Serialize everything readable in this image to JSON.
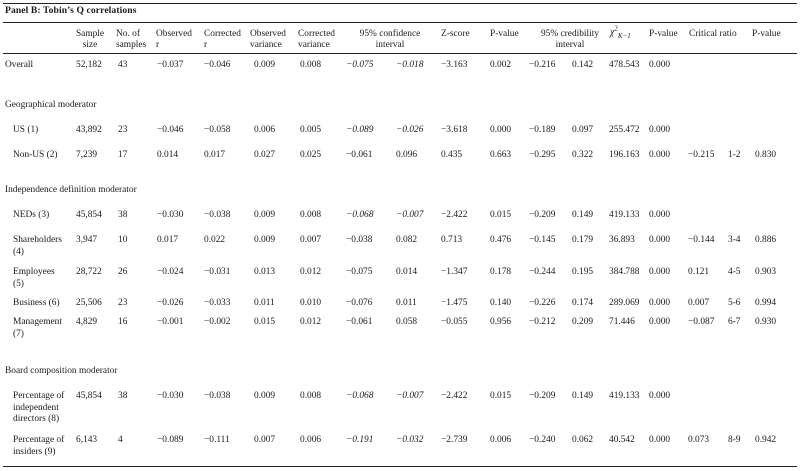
{
  "panel_title": "Panel B: Tobin’s Q correlations",
  "headers": {
    "sample_size": [
      "Sample",
      "size"
    ],
    "num_samples": [
      "No. of",
      "samples"
    ],
    "observed_r": [
      "Observed",
      "r"
    ],
    "corrected_r": [
      "Corrected",
      "r"
    ],
    "observed_var": [
      "Observed",
      "variance"
    ],
    "corrected_var": [
      "Corrected",
      "variance"
    ],
    "ci95": [
      "95% confidence",
      "interval"
    ],
    "z_score": "Z-score",
    "p_value": "P-value",
    "cred95": [
      "95% credibility",
      "interval"
    ],
    "chi_sq": "χ",
    "chi_sup": "2",
    "chi_sub": "K−1",
    "p_value2": "P-value",
    "critical_ratio": "Critical ratio",
    "p_value3": "P-value"
  },
  "sections": {
    "geographical": "Geographical moderator",
    "independence": "Independence definition moderator",
    "board": "Board composition moderator"
  },
  "rows": {
    "overall": {
      "label": "Overall",
      "n": "52,182",
      "k": "43",
      "obs_r": "−0.037",
      "cor_r": "−0.046",
      "obs_var": "0.009",
      "cor_var": "0.008",
      "ci_lo": "−0.075",
      "ci_hi": "−0.018",
      "z": "−3.163",
      "p": "0.002",
      "cr_lo": "−0.216",
      "cr_hi": "0.142",
      "chi": "478.543",
      "p2": "0.000",
      "crit": "",
      "pair": "",
      "p3": ""
    },
    "us": {
      "label": "US (1)",
      "n": "43,892",
      "k": "23",
      "obs_r": "−0.046",
      "cor_r": "−0.058",
      "obs_var": "0.006",
      "cor_var": "0.005",
      "ci_lo": "−0.089",
      "ci_hi": "−0.026",
      "z": "−3.618",
      "p": "0.000",
      "cr_lo": "−0.189",
      "cr_hi": "0.097",
      "chi": "255.472",
      "p2": "0.000",
      "crit": "",
      "pair": "",
      "p3": ""
    },
    "nonus": {
      "label": "Non-US (2)",
      "n": "7,239",
      "k": "17",
      "obs_r": "0.014",
      "cor_r": "0.017",
      "obs_var": "0.027",
      "cor_var": "0.025",
      "ci_lo": "−0.061",
      "ci_hi": "0.096",
      "z": "0.435",
      "p": "0.663",
      "cr_lo": "−0.295",
      "cr_hi": "0.322",
      "chi": "196.163",
      "p2": "0.000",
      "crit": "−0.215",
      "pair": "1-2",
      "p3": "0.830"
    },
    "neds": {
      "label": "NEDs (3)",
      "n": "45,854",
      "k": "38",
      "obs_r": "−0.030",
      "cor_r": "−0.038",
      "obs_var": "0.009",
      "cor_var": "0.008",
      "ci_lo": "−0.068",
      "ci_hi": "−0.007",
      "z": "−2.422",
      "p": "0.015",
      "cr_lo": "−0.209",
      "cr_hi": "0.149",
      "chi": "419.133",
      "p2": "0.000",
      "crit": "",
      "pair": "",
      "p3": ""
    },
    "shareholders": {
      "label1": "Shareholders",
      "label2": "(4)",
      "n": "3,947",
      "k": "10",
      "obs_r": "0.017",
      "cor_r": "0.022",
      "obs_var": "0.009",
      "cor_var": "0.007",
      "ci_lo": "−0.038",
      "ci_hi": "0.082",
      "z": "0.713",
      "p": "0.476",
      "cr_lo": "−0.145",
      "cr_hi": "0.179",
      "chi": "36.893",
      "p2": "0.000",
      "crit": "−0.144",
      "pair": "3-4",
      "p3": "0.886"
    },
    "employees": {
      "label1": "Employees",
      "label2": "(5)",
      "n": "28,722",
      "k": "26",
      "obs_r": "−0.024",
      "cor_r": "−0.031",
      "obs_var": "0.013",
      "cor_var": "0.012",
      "ci_lo": "−0.075",
      "ci_hi": "0.014",
      "z": "−1.347",
      "p": "0.178",
      "cr_lo": "−0.244",
      "cr_hi": "0.195",
      "chi": "384.788",
      "p2": "0.000",
      "crit": "0.121",
      "pair": "4-5",
      "p3": "0.903"
    },
    "business": {
      "label": "Business (6)",
      "n": "25,506",
      "k": "23",
      "obs_r": "−0.026",
      "cor_r": "−0.033",
      "obs_var": "0.011",
      "cor_var": "0.010",
      "ci_lo": "−0.076",
      "ci_hi": "0.011",
      "z": "−1.475",
      "p": "0.140",
      "cr_lo": "−0.226",
      "cr_hi": "0.174",
      "chi": "289.069",
      "p2": "0.000",
      "crit": "0.007",
      "pair": "5-6",
      "p3": "0.994"
    },
    "management": {
      "label1": "Management",
      "label2": "(7)",
      "n": "4,829",
      "k": "16",
      "obs_r": "−0.001",
      "cor_r": "−0.002",
      "obs_var": "0.015",
      "cor_var": "0.012",
      "ci_lo": "−0.061",
      "ci_hi": "0.058",
      "z": "−0.055",
      "p": "0.956",
      "cr_lo": "−0.212",
      "cr_hi": "0.209",
      "chi": "71.446",
      "p2": "0.000",
      "crit": "−0.087",
      "pair": "6-7",
      "p3": "0.930"
    },
    "pct_indep": {
      "label1": "Percentage of",
      "label2": "independent",
      "label3": "directors (8)",
      "n": "45,854",
      "k": "38",
      "obs_r": "−0.030",
      "cor_r": "−0.038",
      "obs_var": "0.009",
      "cor_var": "0.008",
      "ci_lo": "−0.068",
      "ci_hi": "−0.007",
      "z": "−2.422",
      "p": "0.015",
      "cr_lo": "−0.209",
      "cr_hi": "0.149",
      "chi": "419.133",
      "p2": "0.000",
      "crit": "",
      "pair": "",
      "p3": ""
    },
    "pct_insiders": {
      "label1": "Percentage of",
      "label2": "insiders (9)",
      "n": "6,143",
      "k": "4",
      "obs_r": "−0.089",
      "cor_r": "−0.111",
      "obs_var": "0.007",
      "cor_var": "0.006",
      "ci_lo": "−0.191",
      "ci_hi": "−0.032",
      "z": "−2.739",
      "p": "0.006",
      "cr_lo": "−0.240",
      "cr_hi": "0.062",
      "chi": "40.542",
      "p2": "0.000",
      "crit": "0.073",
      "pair": "8-9",
      "p3": "0.942"
    }
  }
}
